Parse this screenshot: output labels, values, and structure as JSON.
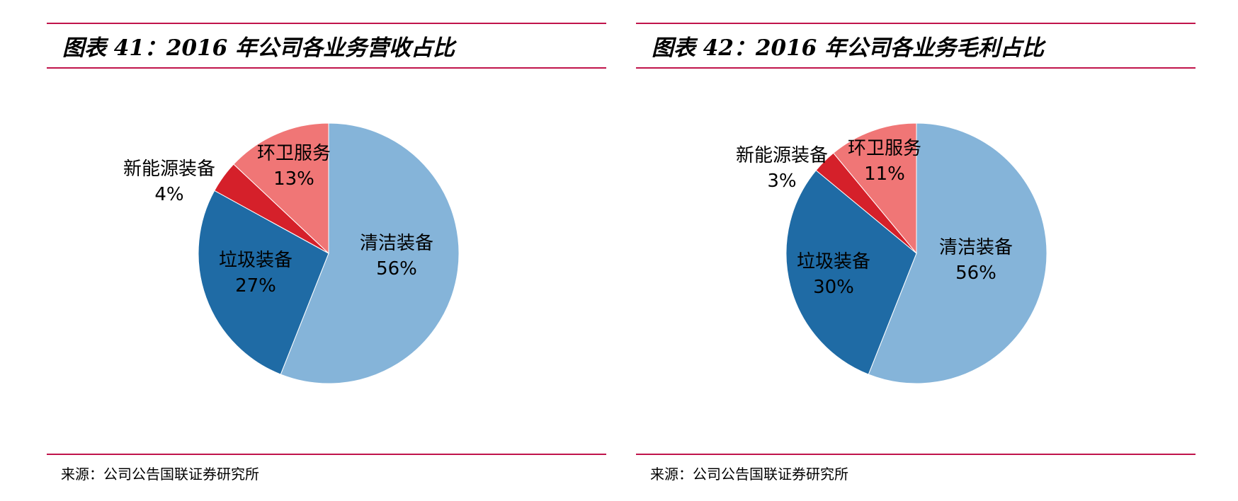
{
  "chart_data": [
    {
      "type": "pie",
      "title": "图表 41：2016 年公司各业务营收占比",
      "source": "来源：公司公告国联证券研究所",
      "categories": [
        "清洁装备",
        "垃圾装备",
        "新能源装备",
        "环卫服务"
      ],
      "values": [
        56,
        27,
        4,
        13
      ],
      "value_labels": [
        "56%",
        "27%",
        "4%",
        "13%"
      ],
      "colors": [
        "#85b4d9",
        "#1f6ba5",
        "#d5202a",
        "#f07676"
      ]
    },
    {
      "type": "pie",
      "title": "图表 42：2016 年公司各业务毛利占比",
      "source": "来源：公司公告国联证券研究所",
      "categories": [
        "清洁装备",
        "垃圾装备",
        "新能源装备",
        "环卫服务"
      ],
      "values": [
        56,
        30,
        3,
        11
      ],
      "value_labels": [
        "56%",
        "30%",
        "3%",
        "11%"
      ],
      "colors": [
        "#85b4d9",
        "#1f6ba5",
        "#d5202a",
        "#f07676"
      ]
    }
  ]
}
